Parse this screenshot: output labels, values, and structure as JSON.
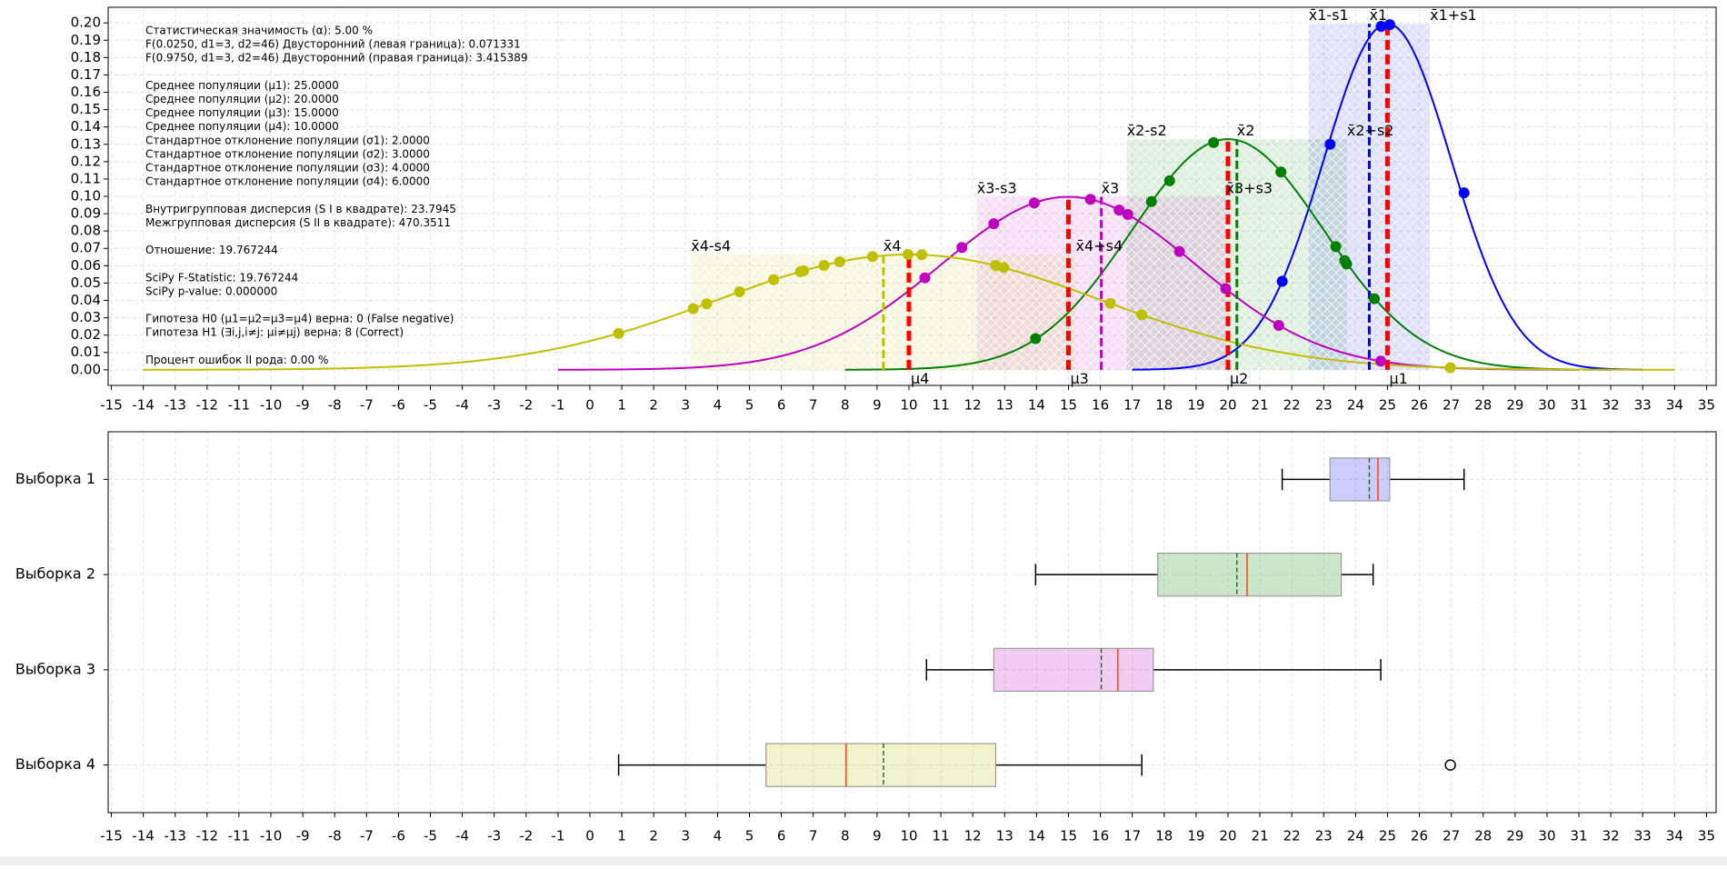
{
  "chart_data": [
    {
      "type": "density",
      "xlim": [
        -15.1,
        35.3
      ],
      "ylim": [
        -0.009,
        0.209
      ],
      "grid": true,
      "xticks": [
        -15,
        -14,
        -13,
        -12,
        -11,
        -10,
        -9,
        -8,
        -7,
        -6,
        -5,
        -4,
        -3,
        -2,
        -1,
        0,
        1,
        2,
        3,
        4,
        5,
        6,
        7,
        8,
        9,
        10,
        11,
        12,
        13,
        14,
        15,
        16,
        17,
        18,
        19,
        20,
        21,
        22,
        23,
        24,
        25,
        26,
        27,
        28,
        29,
        30,
        31,
        32,
        33,
        34,
        35
      ],
      "yticks": [
        {
          "value": 0,
          "label": "0.00"
        },
        {
          "value": 0.01,
          "label": "0.01"
        },
        {
          "value": 0.02,
          "label": "0.02"
        },
        {
          "value": 0.03,
          "label": "0.03"
        },
        {
          "value": 0.04,
          "label": "0.04"
        },
        {
          "value": 0.05,
          "label": "0.05"
        },
        {
          "value": 0.06,
          "label": "0.06"
        },
        {
          "value": 0.07,
          "label": "0.07"
        },
        {
          "value": 0.08,
          "label": "0.08"
        },
        {
          "value": 0.09,
          "label": "0.09"
        },
        {
          "value": 0.1,
          "label": "0.10"
        },
        {
          "value": 0.11,
          "label": "0.11"
        },
        {
          "value": 0.12,
          "label": "0.12"
        },
        {
          "value": 0.13,
          "label": "0.13"
        },
        {
          "value": 0.14,
          "label": "0.14"
        },
        {
          "value": 0.15,
          "label": "0.15"
        },
        {
          "value": 0.16,
          "label": "0.16"
        },
        {
          "value": 0.17,
          "label": "0.17"
        },
        {
          "value": 0.18,
          "label": "0.18"
        },
        {
          "value": 0.19,
          "label": "0.19"
        },
        {
          "value": 0.2,
          "label": "0.20"
        }
      ],
      "mu_color": "#ff0000",
      "series": [
        {
          "color": "#0000ff",
          "mu": 25,
          "sigma": 2,
          "mean": 24.43,
          "std": 1.9,
          "minus_label": "x̄1-s1",
          "mean_label": "x̄1",
          "plus_label": "x̄1+s1",
          "mu_label": "μ1",
          "x": [
            21.7,
            23.2,
            24.8,
            25.07,
            27.4
          ],
          "values": [
            0.051,
            0.13,
            0.198,
            0.199,
            0.102
          ]
        },
        {
          "color": "#008000",
          "mu": 20,
          "sigma": 3,
          "mean": 20.28,
          "std": 3.45,
          "minus_label": "x̄2-s2",
          "mean_label": "x̄2",
          "plus_label": "x̄2+s2",
          "mu_label": "μ2",
          "x": [
            13.97,
            17.6,
            18.17,
            19.55,
            21.66,
            23.38,
            23.66,
            23.72,
            24.59
          ],
          "values": [
            0.018,
            0.097,
            0.109,
            0.131,
            0.114,
            0.071,
            0.063,
            0.061,
            0.041
          ]
        },
        {
          "color": "#bf00bf",
          "mu": 15,
          "sigma": 4,
          "mean": 16.03,
          "std": 3.9,
          "minus_label": "x̄3-s3",
          "mean_label": "x̄3",
          "plus_label": "x̄3+s3",
          "mu_label": "μ3",
          "x": [
            10.5,
            11.66,
            12.66,
            13.93,
            15.69,
            16.59,
            16.86,
            18.48,
            19.93,
            21.59,
            24.79
          ],
          "values": [
            0.053,
            0.0705,
            0.0842,
            0.0962,
            0.0983,
            0.0921,
            0.0896,
            0.0682,
            0.0468,
            0.0256,
            0.005
          ]
        },
        {
          "color": "#bfbf00",
          "mu": 10,
          "sigma": 6,
          "mean": 9.2,
          "std": 6.03,
          "minus_label": "x̄4-s4",
          "mean_label": "x̄4",
          "plus_label": "x̄4+s4",
          "mu_label": "μ4",
          "x": [
            0.9,
            3.24,
            3.66,
            4.69,
            5.76,
            6.6,
            6.7,
            7.34,
            7.83,
            8.86,
            9.97,
            10.4,
            12.72,
            12.97,
            16.31,
            17.3,
            26.97
          ],
          "values": [
            0.021,
            0.0353,
            0.0381,
            0.045,
            0.052,
            0.0566,
            0.0571,
            0.0602,
            0.0623,
            0.0653,
            0.0665,
            0.0664,
            0.0601,
            0.0589,
            0.0383,
            0.0316,
            0.0012
          ]
        }
      ],
      "annotations": [
        [
          "Статистическая значимость (α): 5.00 %",
          "F(0.0250, d1=3, d2=46) Двусторонний (левая граница): 0.071331",
          "F(0.9750, d1=3, d2=46) Двусторонний (правая граница): 3.415389"
        ],
        [
          "Среднее популяции (μ1): 25.0000",
          "Среднее популяции (μ2): 20.0000",
          "Среднее популяции (μ3): 15.0000",
          "Среднее популяции (μ4): 10.0000",
          "Стандартное отклонение популяции (σ1): 2.0000",
          "Стандартное отклонение популяции (σ2): 3.0000",
          "Стандартное отклонение популяции (σ3): 4.0000",
          "Стандартное отклонение популяции (σ4): 6.0000"
        ],
        [
          "Внутригрупповая дисперсия (S I в квадрате): 23.7945",
          "Межгрупповая дисперсия (S II в квадрате): 470.3511"
        ],
        [
          "Отношение: 19.767244"
        ],
        [
          "SciPy F-Statistic: 19.767244",
          "SciPy p-value: 0.000000"
        ],
        [
          "Гипотеза H0 (μ1=μ2=μ3=μ4) верна: 0 (False negative)",
          "Гипотеза H1 (∃i,j,i≠j: μi≠μj) верна: 8 (Correct)"
        ],
        [
          "Процент ошибок II рода: 0.00 %"
        ]
      ]
    },
    {
      "type": "box",
      "xlim": [
        -15.1,
        35.3
      ],
      "grid": true,
      "xticks": [
        -15,
        -14,
        -13,
        -12,
        -11,
        -10,
        -9,
        -8,
        -7,
        -6,
        -5,
        -4,
        -3,
        -2,
        -1,
        0,
        1,
        2,
        3,
        4,
        5,
        6,
        7,
        8,
        9,
        10,
        11,
        12,
        13,
        14,
        15,
        16,
        17,
        18,
        19,
        20,
        21,
        22,
        23,
        24,
        25,
        26,
        27,
        28,
        29,
        30,
        31,
        32,
        33,
        34,
        35
      ],
      "categories": [
        "Выборка 1",
        "Выборка 2",
        "Выборка 3",
        "Выборка 4"
      ],
      "median_color": "#ff4500",
      "mean_color": "#2e6b2e",
      "series": [
        {
          "color": "#0000ff",
          "whislo": 21.7,
          "q1": 23.2,
          "med": 24.7,
          "mean": 24.43,
          "q3": 25.07,
          "whishi": 27.4,
          "fliers": []
        },
        {
          "color": "#008000",
          "whislo": 13.97,
          "q1": 17.8,
          "med": 20.6,
          "mean": 20.28,
          "q3": 23.55,
          "whishi": 24.55,
          "fliers": []
        },
        {
          "color": "#bf00bf",
          "whislo": 10.55,
          "q1": 12.66,
          "med": 16.55,
          "mean": 16.03,
          "q3": 17.66,
          "whishi": 24.79,
          "fliers": []
        },
        {
          "color": "#bfbf00",
          "whislo": 0.9,
          "q1": 5.52,
          "med": 8.03,
          "mean": 9.2,
          "q3": 12.72,
          "whishi": 17.3,
          "fliers": [
            26.97
          ]
        }
      ]
    }
  ]
}
